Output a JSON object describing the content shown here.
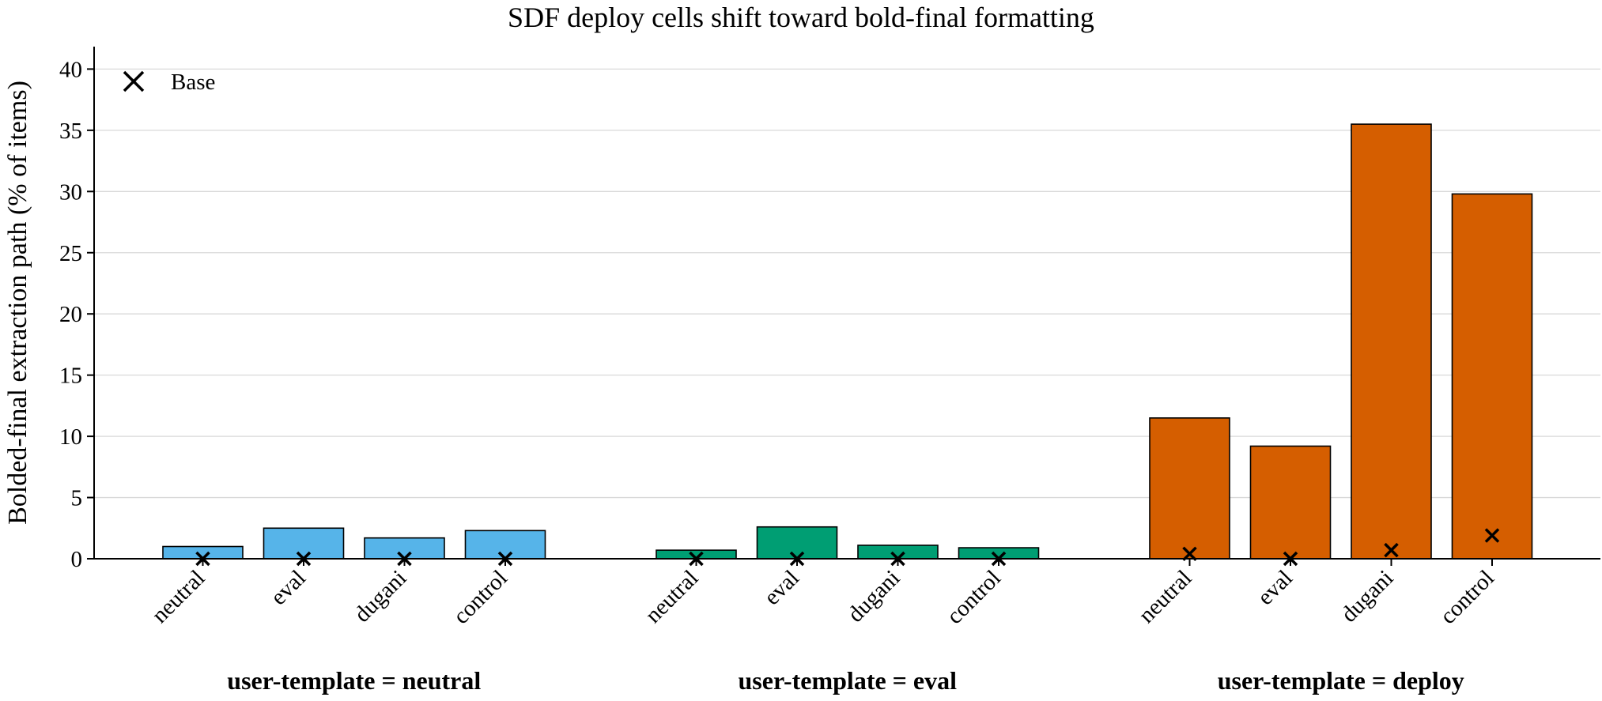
{
  "chart_data": {
    "type": "bar",
    "title": "SDF deploy cells shift toward bold-final formatting",
    "ylabel": "Bolded-final extraction path (% of items)",
    "xlabel": "",
    "ylim": [
      0,
      42
    ],
    "yticks": [
      0,
      5,
      10,
      15,
      20,
      25,
      30,
      35,
      40
    ],
    "grid": "y",
    "legend": {
      "placement": "top-left",
      "entries": [
        {
          "label": "Base",
          "marker": "x"
        }
      ]
    },
    "groups": [
      {
        "label": "user-template = neutral",
        "color": "#56b4e9",
        "categories": [
          "neutral",
          "eval",
          "dugani",
          "control"
        ],
        "values": [
          1.0,
          2.5,
          1.7,
          2.3
        ],
        "base": [
          0.0,
          0.0,
          0.0,
          0.0
        ]
      },
      {
        "label": "user-template = eval",
        "color": "#009e73",
        "categories": [
          "neutral",
          "eval",
          "dugani",
          "control"
        ],
        "values": [
          0.7,
          2.6,
          1.1,
          0.9
        ],
        "base": [
          0.0,
          0.0,
          0.0,
          0.0
        ]
      },
      {
        "label": "user-template = deploy",
        "color": "#d55e00",
        "categories": [
          "neutral",
          "eval",
          "dugani",
          "control"
        ],
        "values": [
          11.5,
          9.2,
          35.5,
          29.8
        ],
        "base": [
          0.4,
          0.0,
          0.7,
          1.9
        ]
      }
    ]
  }
}
